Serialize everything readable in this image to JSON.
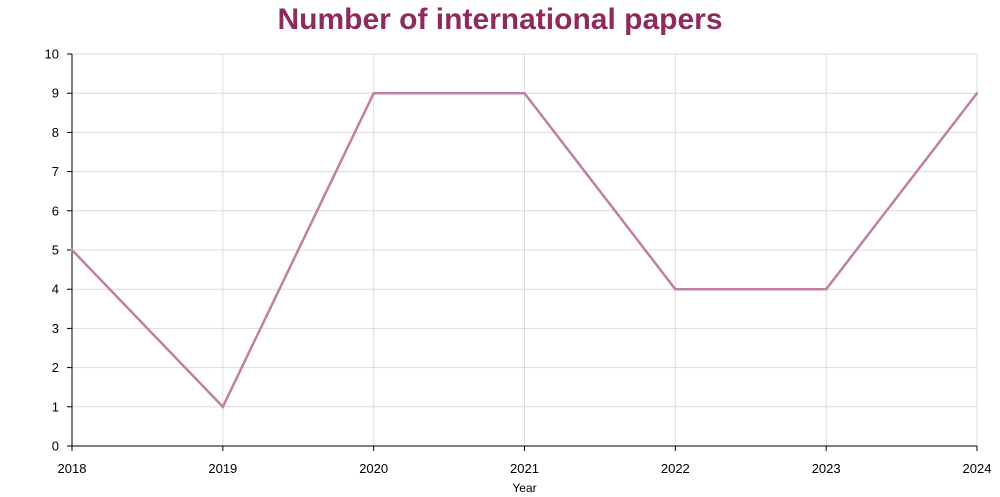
{
  "chart_data": {
    "type": "line",
    "title": "Number of international papers",
    "xlabel": "Year",
    "ylabel": "",
    "categories": [
      "2018",
      "2019",
      "2020",
      "2021",
      "2022",
      "2023",
      "2024"
    ],
    "series": [
      {
        "values": [
          5,
          1,
          9,
          9,
          4,
          4,
          9
        ],
        "color": "#c17fa3"
      }
    ],
    "ylim": [
      0,
      10
    ],
    "yticks": [
      "0",
      "1",
      "2",
      "3",
      "4",
      "5",
      "6",
      "7",
      "8",
      "9",
      "10"
    ],
    "grid": true,
    "legend": "none",
    "colors": {
      "title": "#8e2a5e",
      "grid": "#dcdcdc",
      "axis": "#000000"
    }
  }
}
